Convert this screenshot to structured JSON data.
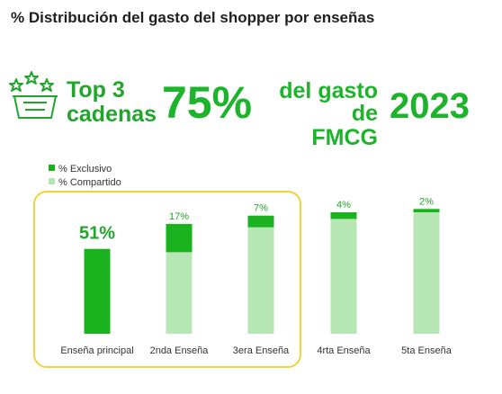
{
  "page": {
    "title": "% Distribución del gasto del shopper por enseñas"
  },
  "headline": {
    "top3_line1": "Top 3",
    "top3_line2": "cadenas",
    "percent": "75%",
    "gasto_line1": "del gasto de",
    "gasto_line2": "FMCG",
    "year": "2023",
    "icon": "stars-basket-icon"
  },
  "colors": {
    "exclusive": "#1ab31f",
    "shared": "#b7e6b5",
    "highlight_border": "#f2d23a",
    "label": "#22a52c"
  },
  "chart_data": {
    "type": "bar",
    "stacked": true,
    "categories": [
      "Enseña principal",
      "2nda Enseña",
      "3era Enseña",
      "4rta Enseña",
      "5ta Enseña"
    ],
    "series": [
      {
        "name": "% Exclusivo",
        "values": [
          51,
          17,
          7,
          4,
          2
        ],
        "color": "#1ab31f"
      },
      {
        "name": "% Compartido",
        "values": [
          0,
          49,
          64,
          69,
          73
        ],
        "color": "#b7e6b5"
      }
    ],
    "data_labels": [
      "51%",
      "17%",
      "7%",
      "4%",
      "2%"
    ],
    "ylim": [
      0,
      80
    ],
    "grid": false,
    "legend_position": "top-left",
    "highlighted_categories": [
      "Enseña principal",
      "2nda Enseña",
      "3era Enseña"
    ]
  }
}
